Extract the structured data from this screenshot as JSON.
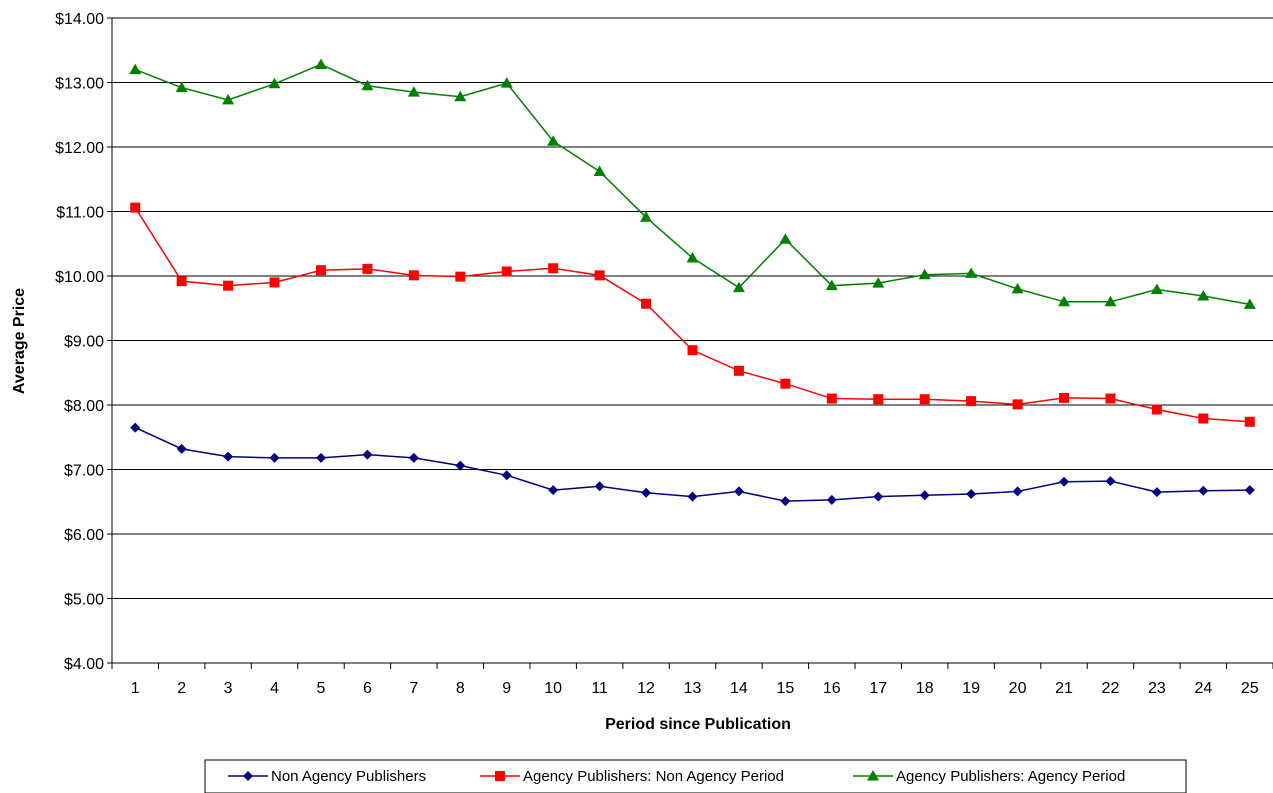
{
  "chart_data": {
    "type": "line",
    "title": "",
    "xlabel": "Period since Publication",
    "ylabel": "Average Price",
    "x": [
      1,
      2,
      3,
      4,
      5,
      6,
      7,
      8,
      9,
      10,
      11,
      12,
      13,
      14,
      15,
      16,
      17,
      18,
      19,
      20,
      21,
      22,
      23,
      24,
      25
    ],
    "x_tick_labels": [
      "1",
      "2",
      "3",
      "4",
      "5",
      "6",
      "7",
      "8",
      "9",
      "10",
      "11",
      "12",
      "13",
      "14",
      "15",
      "16",
      "17",
      "18",
      "19",
      "20",
      "21",
      "22",
      "23",
      "24",
      "25"
    ],
    "ylim": [
      4,
      14
    ],
    "y_ticks": [
      4,
      5,
      6,
      7,
      8,
      9,
      10,
      11,
      12,
      13,
      14
    ],
    "y_tick_labels": [
      "$4.00",
      "$5.00",
      "$6.00",
      "$7.00",
      "$8.00",
      "$9.00",
      "$10.00",
      "$11.00",
      "$12.00",
      "$13.00",
      "$14.00"
    ],
    "grid": "horizontal",
    "legend_position": "bottom",
    "series": [
      {
        "name": "Non Agency Publishers",
        "color": "#000080",
        "marker": "diamond",
        "values": [
          7.65,
          7.32,
          7.2,
          7.18,
          7.18,
          7.23,
          7.18,
          7.06,
          6.91,
          6.68,
          6.74,
          6.64,
          6.58,
          6.66,
          6.51,
          6.53,
          6.58,
          6.6,
          6.62,
          6.66,
          6.81,
          6.82,
          6.65,
          6.67,
          6.68
        ]
      },
      {
        "name": "Agency Publishers: Non Agency Period",
        "color": "#ff0000",
        "marker": "square",
        "values": [
          11.06,
          9.92,
          9.85,
          9.9,
          10.09,
          10.11,
          10.01,
          9.99,
          10.07,
          10.12,
          10.01,
          9.57,
          8.85,
          8.53,
          8.33,
          8.1,
          8.09,
          8.09,
          8.06,
          8.01,
          8.11,
          8.1,
          7.93,
          7.79,
          7.74
        ]
      },
      {
        "name": "Agency Publishers: Agency Period",
        "color": "#008000",
        "marker": "triangle",
        "values": [
          13.2,
          12.92,
          12.73,
          12.98,
          13.28,
          12.95,
          12.85,
          12.78,
          12.99,
          12.09,
          11.62,
          10.91,
          10.28,
          9.82,
          10.57,
          9.85,
          9.89,
          10.02,
          10.04,
          9.8,
          9.6,
          9.6,
          9.79,
          9.69,
          9.56
        ]
      }
    ]
  }
}
